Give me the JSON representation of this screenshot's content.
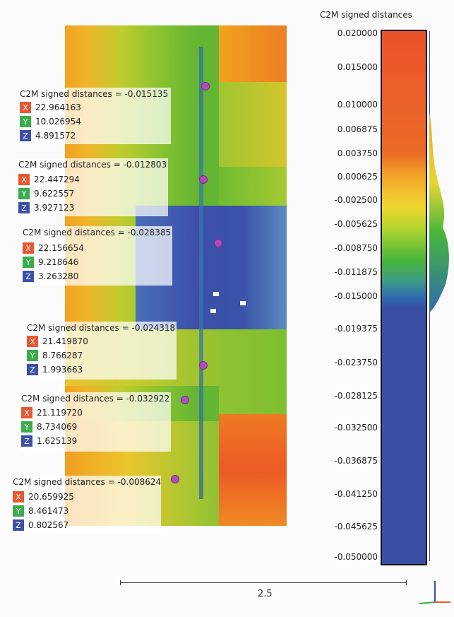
{
  "scalar_field": {
    "title": "C2M signed distances"
  },
  "scale_bar": {
    "ticks": [
      "0.020000",
      "0.015000",
      "0.010000",
      "0.006875",
      "0.003750",
      "0.000625",
      "-0.002500",
      "-0.005625",
      "-0.008750",
      "-0.011875",
      "-0.015000",
      "-0.019375",
      "-0.023750",
      "-0.028125",
      "-0.032500",
      "-0.036875",
      "-0.041250",
      "-0.045625",
      "-0.050000"
    ]
  },
  "axis_letters": {
    "x": "X",
    "y": "Y",
    "z": "Z"
  },
  "labels": [
    {
      "title": "C2M signed distances = -0.015135",
      "x": "22.964163",
      "y": "10.026954",
      "z": "4.891572"
    },
    {
      "title": "C2M signed distances = -0.012803",
      "x": "22.447294",
      "y": "9.622557",
      "z": "3.927123"
    },
    {
      "title": "C2M signed distances = -0.028385",
      "x": "22.156654",
      "y": "9.218646",
      "z": "3.263280"
    },
    {
      "title": "C2M signed distances = -0.024318",
      "x": "21.419870",
      "y": "8.766287",
      "z": "1.993663"
    },
    {
      "title": "C2M signed distances = -0.032922",
      "x": "21.119720",
      "y": "8.734069",
      "z": "1.625139"
    },
    {
      "title": "C2M signed distances = -0.008624",
      "x": "20.659925",
      "y": "8.461473",
      "z": "0.802567"
    }
  ],
  "ruler": {
    "label": "2.5"
  },
  "colors": {
    "positive": "#e8532a",
    "neutral": "#f0d630",
    "mid": "#48b53a",
    "negative": "#3a4fa3",
    "marker": "#b04cc0"
  }
}
